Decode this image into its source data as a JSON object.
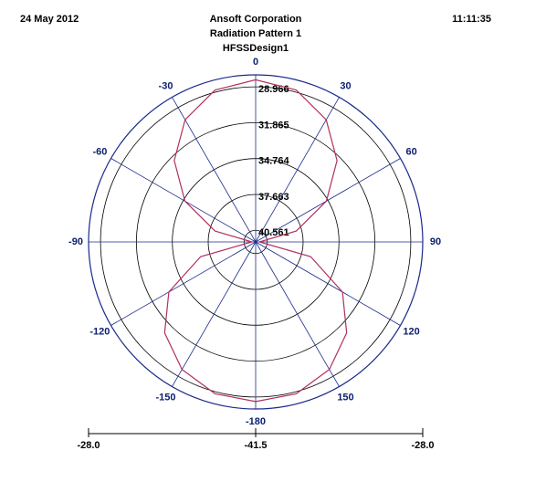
{
  "chart_data": {
    "type": "polar",
    "date": "24 May 2012",
    "time": "11:11:35",
    "title": "Ansoft Corporation",
    "subtitle": "Radiation Pattern 1",
    "design": "HFSSDesign1",
    "rlim": [
      -41.5,
      -28.0
    ],
    "rticks": [
      {
        "value": -28.966,
        "label": "28.966"
      },
      {
        "value": -31.865,
        "label": "31.865"
      },
      {
        "value": -34.764,
        "label": "34.764"
      },
      {
        "value": -37.663,
        "label": "37.663"
      },
      {
        "value": -40.561,
        "label": "40.561"
      }
    ],
    "angle_ticks": [
      0,
      30,
      60,
      90,
      120,
      150,
      -180,
      -150,
      -120,
      -90,
      -60,
      -30
    ],
    "scale_ticks": [
      {
        "value": -28.0,
        "label": "-28.0",
        "side": "left"
      },
      {
        "value": -41.5,
        "label": "-41.5",
        "side": "center"
      },
      {
        "value": -28.0,
        "label": "-28.0",
        "side": "right"
      }
    ],
    "grid_color": "#000000",
    "spoke_color": "#1a2a8c",
    "series": [
      {
        "color": "#b0305e",
        "theta": [
          -180,
          -165,
          -150,
          -135,
          -120,
          -105,
          -90,
          -75,
          -60,
          -45,
          -30,
          -15,
          0,
          15,
          30,
          45,
          60,
          75,
          90,
          105,
          120,
          135,
          150,
          165,
          180
        ],
        "values": [
          -28.6,
          -28.8,
          -29.6,
          -31.1,
          -33.4,
          -36.9,
          -41.2,
          -38.1,
          -34.9,
          -32.2,
          -30.1,
          -28.8,
          -28.4,
          -28.8,
          -30.1,
          -32.2,
          -34.9,
          -38.1,
          -41.2,
          -36.9,
          -33.4,
          -31.1,
          -29.6,
          -28.8,
          -28.6
        ]
      }
    ]
  }
}
